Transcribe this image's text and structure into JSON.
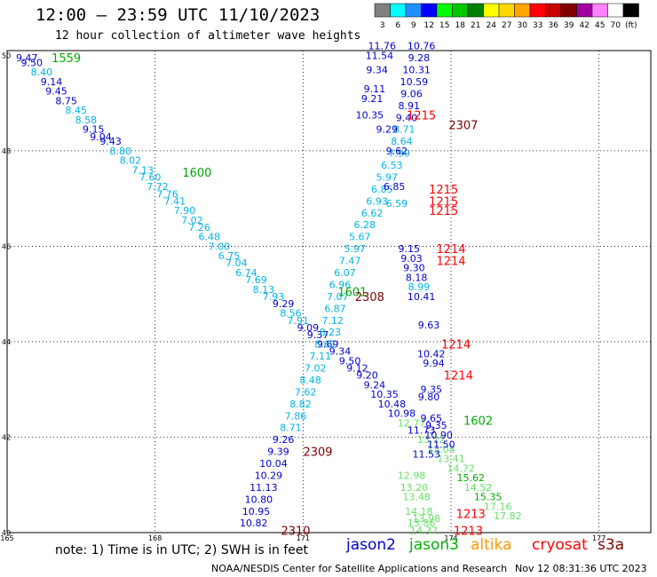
{
  "title": "12:00 – 23:59 UTC 11/10/2023",
  "subtitle": "12 hour collection of altimeter wave heights",
  "legend": {
    "unit": "(ft)",
    "bins": [
      {
        "label": "3",
        "color": "#808080"
      },
      {
        "label": "6",
        "color": "#00ffff"
      },
      {
        "label": "9",
        "color": "#1e90ff"
      },
      {
        "label": "12",
        "color": "#0000ff"
      },
      {
        "label": "15",
        "color": "#00ff00"
      },
      {
        "label": "18",
        "color": "#00c800"
      },
      {
        "label": "21",
        "color": "#008000"
      },
      {
        "label": "24",
        "color": "#ffff00"
      },
      {
        "label": "27",
        "color": "#ffd700"
      },
      {
        "label": "30",
        "color": "#ffa500"
      },
      {
        "label": "33",
        "color": "#ff0000"
      },
      {
        "label": "36",
        "color": "#c80000"
      },
      {
        "label": "39",
        "color": "#800000"
      },
      {
        "label": "42",
        "color": "#a000a0"
      },
      {
        "label": "45",
        "color": "#ff80ff"
      },
      {
        "label": "70",
        "color": "#ffffff"
      },
      {
        "label": "",
        "color": "#000000"
      }
    ]
  },
  "axes": {
    "lon_ticks": [
      "165",
      "168",
      "171",
      "174",
      "177"
    ],
    "lat_ticks": [
      "50",
      "48",
      "46",
      "44",
      "42",
      "40"
    ]
  },
  "note": "note: 1) Time is in UTC; 2) SWH is in feet",
  "satellites": [
    {
      "name": "jason2",
      "color": "#0000cd"
    },
    {
      "name": "jason3",
      "color": "#00b000"
    },
    {
      "name": "altika",
      "color": "#ff9900"
    },
    {
      "name": "cryosat",
      "color": "#ff0000"
    },
    {
      "name": "s3a",
      "color": "#800000"
    }
  ],
  "credit": "NOAA/NESDIS Center for Satellite Applications and Research",
  "timestamp": "Nov 12 08:31:36 UTC 2023",
  "colors": {
    "blue": "#0000cd",
    "cyan": "#00b4e6",
    "green": "#00aa00",
    "lightgreen": "#66e066",
    "red": "#ff0000",
    "darkred": "#800000"
  },
  "chart_data": {
    "type": "scatter",
    "x_range": [
      165,
      178
    ],
    "y_range": [
      40,
      50
    ],
    "points": [
      {
        "lon": 165.4,
        "lat": 49.95,
        "v": "9.47",
        "c": "blue"
      },
      {
        "lon": 165.5,
        "lat": 49.85,
        "v": "9.50",
        "c": "blue"
      },
      {
        "lon": 165.7,
        "lat": 49.65,
        "v": "8.40",
        "c": "cyan"
      },
      {
        "lon": 165.9,
        "lat": 49.45,
        "v": "9.14",
        "c": "blue"
      },
      {
        "lon": 166.0,
        "lat": 49.25,
        "v": "9.45",
        "c": "blue"
      },
      {
        "lon": 166.2,
        "lat": 49.05,
        "v": "8.75",
        "c": "blue"
      },
      {
        "lon": 166.4,
        "lat": 48.85,
        "v": "8.45",
        "c": "cyan"
      },
      {
        "lon": 166.6,
        "lat": 48.65,
        "v": "8.58",
        "c": "cyan"
      },
      {
        "lon": 166.75,
        "lat": 48.45,
        "v": "9.15",
        "c": "blue"
      },
      {
        "lon": 166.9,
        "lat": 48.3,
        "v": "9.04",
        "c": "blue"
      },
      {
        "lon": 167.1,
        "lat": 48.2,
        "v": "9.43",
        "c": "blue"
      },
      {
        "lon": 167.3,
        "lat": 48.0,
        "v": "8.80",
        "c": "cyan"
      },
      {
        "lon": 167.5,
        "lat": 47.8,
        "v": "8.02",
        "c": "cyan"
      },
      {
        "lon": 167.75,
        "lat": 47.6,
        "v": "7.13",
        "c": "cyan"
      },
      {
        "lon": 167.9,
        "lat": 47.45,
        "v": "7.60",
        "c": "cyan"
      },
      {
        "lon": 168.05,
        "lat": 47.25,
        "v": "7.72",
        "c": "cyan"
      },
      {
        "lon": 168.25,
        "lat": 47.1,
        "v": "7.76",
        "c": "cyan"
      },
      {
        "lon": 168.4,
        "lat": 46.95,
        "v": "7.41",
        "c": "cyan"
      },
      {
        "lon": 168.6,
        "lat": 46.75,
        "v": "7.90",
        "c": "cyan"
      },
      {
        "lon": 168.75,
        "lat": 46.55,
        "v": "7.02",
        "c": "cyan"
      },
      {
        "lon": 168.9,
        "lat": 46.4,
        "v": "7.26",
        "c": "cyan"
      },
      {
        "lon": 169.1,
        "lat": 46.2,
        "v": "6.48",
        "c": "cyan"
      },
      {
        "lon": 169.3,
        "lat": 46.0,
        "v": "7.00",
        "c": "cyan"
      },
      {
        "lon": 169.5,
        "lat": 45.8,
        "v": "6.75",
        "c": "cyan"
      },
      {
        "lon": 169.65,
        "lat": 45.65,
        "v": "7.04",
        "c": "cyan"
      },
      {
        "lon": 169.85,
        "lat": 45.45,
        "v": "6.74",
        "c": "cyan"
      },
      {
        "lon": 170.05,
        "lat": 45.3,
        "v": "7.69",
        "c": "cyan"
      },
      {
        "lon": 170.2,
        "lat": 45.1,
        "v": "8.13",
        "c": "cyan"
      },
      {
        "lon": 170.4,
        "lat": 44.95,
        "v": "7.93",
        "c": "cyan"
      },
      {
        "lon": 170.6,
        "lat": 44.8,
        "v": "9.29",
        "c": "blue"
      },
      {
        "lon": 170.75,
        "lat": 44.6,
        "v": "8.56",
        "c": "cyan"
      },
      {
        "lon": 170.9,
        "lat": 44.45,
        "v": "7.91",
        "c": "cyan"
      },
      {
        "lon": 171.1,
        "lat": 44.3,
        "v": "9.09",
        "c": "blue"
      },
      {
        "lon": 171.3,
        "lat": 44.15,
        "v": "9.37",
        "c": "blue"
      },
      {
        "lon": 171.5,
        "lat": 43.95,
        "v": "9.69",
        "c": "blue"
      },
      {
        "lon": 171.75,
        "lat": 43.8,
        "v": "9.34",
        "c": "blue"
      },
      {
        "lon": 171.95,
        "lat": 43.6,
        "v": "9.50",
        "c": "blue"
      },
      {
        "lon": 172.1,
        "lat": 43.45,
        "v": "9.12",
        "c": "blue"
      },
      {
        "lon": 172.3,
        "lat": 43.3,
        "v": "9.20",
        "c": "blue"
      },
      {
        "lon": 172.45,
        "lat": 43.1,
        "v": "9.24",
        "c": "blue"
      },
      {
        "lon": 172.65,
        "lat": 42.9,
        "v": "10.35",
        "c": "blue"
      },
      {
        "lon": 172.8,
        "lat": 42.7,
        "v": "10.48",
        "c": "blue"
      },
      {
        "lon": 173.0,
        "lat": 42.5,
        "v": "10.98",
        "c": "blue"
      },
      {
        "lon": 173.2,
        "lat": 42.3,
        "v": "12.77",
        "c": "lightgreen"
      },
      {
        "lon": 173.4,
        "lat": 42.15,
        "v": "11.73",
        "c": "blue"
      },
      {
        "lon": 173.6,
        "lat": 41.95,
        "v": "13.12",
        "c": "lightgreen"
      },
      {
        "lon": 173.8,
        "lat": 41.75,
        "v": "13.04",
        "c": "lightgreen"
      },
      {
        "lon": 174.0,
        "lat": 41.55,
        "v": "13.41",
        "c": "lightgreen"
      },
      {
        "lon": 174.2,
        "lat": 41.35,
        "v": "14.72",
        "c": "lightgreen"
      },
      {
        "lon": 174.4,
        "lat": 41.15,
        "v": "15.62",
        "c": "green"
      },
      {
        "lon": 174.55,
        "lat": 40.95,
        "v": "14.52",
        "c": "lightgreen"
      },
      {
        "lon": 174.75,
        "lat": 40.75,
        "v": "15.35",
        "c": "green"
      },
      {
        "lon": 174.95,
        "lat": 40.55,
        "v": "17.16",
        "c": "lightgreen"
      },
      {
        "lon": 175.15,
        "lat": 40.35,
        "v": "17.82",
        "c": "lightgreen"
      },
      {
        "lon": 170.0,
        "lat": 40.2,
        "v": "10.82",
        "c": "blue"
      },
      {
        "lon": 170.05,
        "lat": 40.45,
        "v": "10.95",
        "c": "blue"
      },
      {
        "lon": 170.1,
        "lat": 40.7,
        "v": "10.80",
        "c": "blue"
      },
      {
        "lon": 170.2,
        "lat": 40.95,
        "v": "11.13",
        "c": "blue"
      },
      {
        "lon": 170.3,
        "lat": 41.2,
        "v": "10.29",
        "c": "blue"
      },
      {
        "lon": 170.4,
        "lat": 41.45,
        "v": "10.04",
        "c": "blue"
      },
      {
        "lon": 170.5,
        "lat": 41.7,
        "v": "9.39",
        "c": "blue"
      },
      {
        "lon": 170.6,
        "lat": 41.95,
        "v": "9.26",
        "c": "blue"
      },
      {
        "lon": 170.75,
        "lat": 42.2,
        "v": "8.71",
        "c": "cyan"
      },
      {
        "lon": 170.85,
        "lat": 42.45,
        "v": "7.86",
        "c": "cyan"
      },
      {
        "lon": 170.95,
        "lat": 42.7,
        "v": "8.82",
        "c": "cyan"
      },
      {
        "lon": 171.05,
        "lat": 42.95,
        "v": "7.62",
        "c": "cyan"
      },
      {
        "lon": 171.15,
        "lat": 43.2,
        "v": "8.48",
        "c": "cyan"
      },
      {
        "lon": 171.25,
        "lat": 43.45,
        "v": "7.02",
        "c": "cyan"
      },
      {
        "lon": 171.35,
        "lat": 43.7,
        "v": "7.11",
        "c": "cyan"
      },
      {
        "lon": 171.45,
        "lat": 43.95,
        "v": "8.61",
        "c": "cyan"
      },
      {
        "lon": 171.55,
        "lat": 44.2,
        "v": "8.23",
        "c": "cyan"
      },
      {
        "lon": 171.6,
        "lat": 44.45,
        "v": "7.12",
        "c": "cyan"
      },
      {
        "lon": 171.65,
        "lat": 44.7,
        "v": "6.87",
        "c": "cyan"
      },
      {
        "lon": 171.7,
        "lat": 44.95,
        "v": "7.07",
        "c": "cyan"
      },
      {
        "lon": 171.75,
        "lat": 45.2,
        "v": "6.96",
        "c": "cyan"
      },
      {
        "lon": 171.85,
        "lat": 45.45,
        "v": "6.07",
        "c": "cyan"
      },
      {
        "lon": 171.95,
        "lat": 45.7,
        "v": "7.47",
        "c": "cyan"
      },
      {
        "lon": 172.05,
        "lat": 45.95,
        "v": "5.97",
        "c": "cyan"
      },
      {
        "lon": 172.15,
        "lat": 46.2,
        "v": "5.67",
        "c": "cyan"
      },
      {
        "lon": 172.25,
        "lat": 46.45,
        "v": "6.28",
        "c": "cyan"
      },
      {
        "lon": 172.4,
        "lat": 46.7,
        "v": "6.62",
        "c": "cyan"
      },
      {
        "lon": 172.5,
        "lat": 46.95,
        "v": "6.93",
        "c": "cyan"
      },
      {
        "lon": 172.6,
        "lat": 47.2,
        "v": "6.85",
        "c": "cyan"
      },
      {
        "lon": 172.7,
        "lat": 47.45,
        "v": "5.97",
        "c": "cyan"
      },
      {
        "lon": 172.8,
        "lat": 47.7,
        "v": "6.53",
        "c": "cyan"
      },
      {
        "lon": 172.95,
        "lat": 47.95,
        "v": "7.99",
        "c": "cyan"
      },
      {
        "lon": 173.0,
        "lat": 48.2,
        "v": "8.64",
        "c": "cyan"
      },
      {
        "lon": 173.05,
        "lat": 48.45,
        "v": "8.71",
        "c": "cyan"
      },
      {
        "lon": 173.1,
        "lat": 48.7,
        "v": "9.40",
        "c": "blue"
      },
      {
        "lon": 173.15,
        "lat": 48.95,
        "v": "8.91",
        "c": "blue"
      },
      {
        "lon": 173.2,
        "lat": 49.2,
        "v": "9.06",
        "c": "blue"
      },
      {
        "lon": 173.25,
        "lat": 49.45,
        "v": "10.59",
        "c": "blue"
      },
      {
        "lon": 173.3,
        "lat": 49.7,
        "v": "10.31",
        "c": "blue"
      },
      {
        "lon": 173.35,
        "lat": 49.95,
        "v": "9.28",
        "c": "blue"
      },
      {
        "lon": 173.4,
        "lat": 50.2,
        "v": "10.76",
        "c": "blue"
      },
      {
        "lon": 172.6,
        "lat": 50.2,
        "v": "11.76",
        "c": "blue"
      },
      {
        "lon": 172.55,
        "lat": 50.0,
        "v": "11.54",
        "c": "blue"
      },
      {
        "lon": 172.5,
        "lat": 49.7,
        "v": "9.34",
        "c": "blue"
      },
      {
        "lon": 172.45,
        "lat": 49.3,
        "v": "9.11",
        "c": "blue"
      },
      {
        "lon": 172.4,
        "lat": 49.1,
        "v": "9.21",
        "c": "blue"
      },
      {
        "lon": 172.35,
        "lat": 48.75,
        "v": "10.35",
        "c": "blue"
      },
      {
        "lon": 172.7,
        "lat": 48.45,
        "v": "9.29",
        "c": "blue"
      },
      {
        "lon": 172.9,
        "lat": 48.0,
        "v": "9.62",
        "c": "blue"
      },
      {
        "lon": 172.85,
        "lat": 47.25,
        "v": "6.85",
        "c": "blue"
      },
      {
        "lon": 172.9,
        "lat": 46.9,
        "v": "6.59",
        "c": "cyan"
      },
      {
        "lon": 173.15,
        "lat": 45.95,
        "v": "9.15",
        "c": "blue"
      },
      {
        "lon": 173.2,
        "lat": 45.75,
        "v": "9.03",
        "c": "blue"
      },
      {
        "lon": 173.25,
        "lat": 45.55,
        "v": "9.30",
        "c": "blue"
      },
      {
        "lon": 173.3,
        "lat": 45.35,
        "v": "8.18",
        "c": "blue"
      },
      {
        "lon": 173.35,
        "lat": 45.15,
        "v": "8.99",
        "c": "cyan"
      },
      {
        "lon": 173.4,
        "lat": 44.95,
        "v": "10.41",
        "c": "blue"
      },
      {
        "lon": 173.55,
        "lat": 44.35,
        "v": "9.63",
        "c": "blue"
      },
      {
        "lon": 173.6,
        "lat": 43.75,
        "v": "10.42",
        "c": "blue"
      },
      {
        "lon": 173.65,
        "lat": 43.55,
        "v": "9.94",
        "c": "blue"
      },
      {
        "lon": 173.6,
        "lat": 43.0,
        "v": "9.35",
        "c": "blue"
      },
      {
        "lon": 173.55,
        "lat": 42.85,
        "v": "9.80",
        "c": "blue"
      },
      {
        "lon": 173.6,
        "lat": 42.4,
        "v": "9.65",
        "c": "blue"
      },
      {
        "lon": 173.7,
        "lat": 42.25,
        "v": "9.35",
        "c": "blue"
      },
      {
        "lon": 173.75,
        "lat": 42.05,
        "v": "10.90",
        "c": "blue"
      },
      {
        "lon": 173.8,
        "lat": 41.85,
        "v": "11.50",
        "c": "blue"
      },
      {
        "lon": 173.5,
        "lat": 41.65,
        "v": "11.53",
        "c": "blue"
      },
      {
        "lon": 173.2,
        "lat": 41.2,
        "v": "12.98",
        "c": "lightgreen"
      },
      {
        "lon": 173.25,
        "lat": 40.95,
        "v": "13.20",
        "c": "lightgreen"
      },
      {
        "lon": 173.3,
        "lat": 40.75,
        "v": "13.48",
        "c": "lightgreen"
      },
      {
        "lon": 173.35,
        "lat": 40.45,
        "v": "14.18",
        "c": "lightgreen"
      },
      {
        "lon": 173.4,
        "lat": 40.2,
        "v": "13.86",
        "c": "lightgreen"
      },
      {
        "lon": 173.45,
        "lat": 40.05,
        "v": "14.37",
        "c": "lightgreen"
      },
      {
        "lon": 173.5,
        "lat": 40.3,
        "v": "13.98",
        "c": "lightgreen"
      }
    ],
    "annotations": [
      {
        "lon": 166.2,
        "lat": 49.95,
        "text": "1559",
        "c": "green"
      },
      {
        "lon": 168.85,
        "lat": 47.55,
        "text": "1600",
        "c": "green"
      },
      {
        "lon": 172.0,
        "lat": 45.05,
        "text": "1601",
        "c": "green"
      },
      {
        "lon": 174.55,
        "lat": 42.35,
        "text": "1602",
        "c": "green"
      },
      {
        "lon": 173.4,
        "lat": 48.75,
        "text": "1215",
        "c": "red"
      },
      {
        "lon": 173.85,
        "lat": 47.2,
        "text": "1215",
        "c": "red"
      },
      {
        "lon": 173.85,
        "lat": 46.95,
        "text": "1215",
        "c": "red"
      },
      {
        "lon": 173.85,
        "lat": 46.75,
        "text": "1215",
        "c": "red"
      },
      {
        "lon": 174.0,
        "lat": 45.95,
        "text": "1214",
        "c": "red"
      },
      {
        "lon": 174.0,
        "lat": 45.7,
        "text": "1214",
        "c": "red"
      },
      {
        "lon": 174.1,
        "lat": 43.95,
        "text": "1214",
        "c": "red"
      },
      {
        "lon": 174.15,
        "lat": 43.3,
        "text": "1214",
        "c": "red"
      },
      {
        "lon": 174.4,
        "lat": 40.4,
        "text": "1213",
        "c": "red"
      },
      {
        "lon": 174.35,
        "lat": 40.05,
        "text": "1213",
        "c": "red"
      },
      {
        "lon": 174.25,
        "lat": 48.55,
        "text": "2307",
        "c": "darkred"
      },
      {
        "lon": 172.35,
        "lat": 44.95,
        "text": "2308",
        "c": "darkred"
      },
      {
        "lon": 171.3,
        "lat": 41.7,
        "text": "2309",
        "c": "darkred"
      },
      {
        "lon": 170.85,
        "lat": 40.05,
        "text": "2310",
        "c": "darkred"
      }
    ]
  }
}
